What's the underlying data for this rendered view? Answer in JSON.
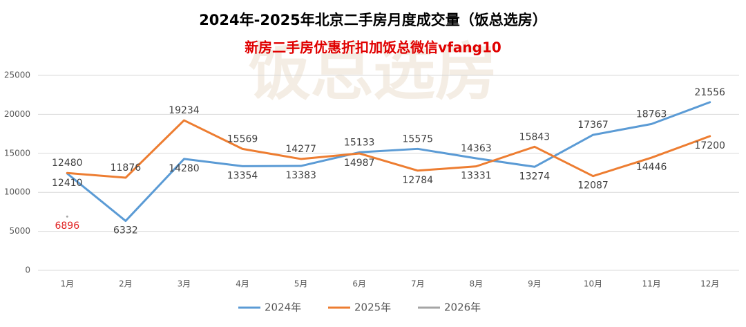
{
  "chart_data": {
    "type": "line",
    "title": "2024年-2025年北京二手房月度成交量（饭总选房）",
    "subtitle": "新房二手房优惠折扣加饭总微信vfang10",
    "watermark": "饭总选房",
    "categories": [
      "1月",
      "2月",
      "3月",
      "4月",
      "5月",
      "6月",
      "7月",
      "8月",
      "9月",
      "10月",
      "11月",
      "12月"
    ],
    "series": [
      {
        "name": "2024年",
        "color": "#5b9bd5",
        "label_color": "#404040",
        "values": [
          12410,
          6332,
          14280,
          13354,
          13383,
          15133,
          15575,
          14363,
          13274,
          17367,
          18763,
          21556
        ]
      },
      {
        "name": "2025年",
        "color": "#ed7d31",
        "label_color": "#404040",
        "values": [
          12480,
          11876,
          19234,
          15569,
          14277,
          14987,
          12784,
          13331,
          15843,
          12087,
          14446,
          17200
        ]
      },
      {
        "name": "2026年",
        "color": "#a5a5a5",
        "label_color": "#e02020",
        "values": [
          6896,
          null,
          null,
          null,
          null,
          null,
          null,
          null,
          null,
          null,
          null,
          null
        ]
      }
    ],
    "ylim": [
      0,
      25000
    ],
    "yticks": [
      0,
      5000,
      10000,
      15000,
      20000,
      25000
    ],
    "grid": true,
    "legend": "bottom"
  }
}
